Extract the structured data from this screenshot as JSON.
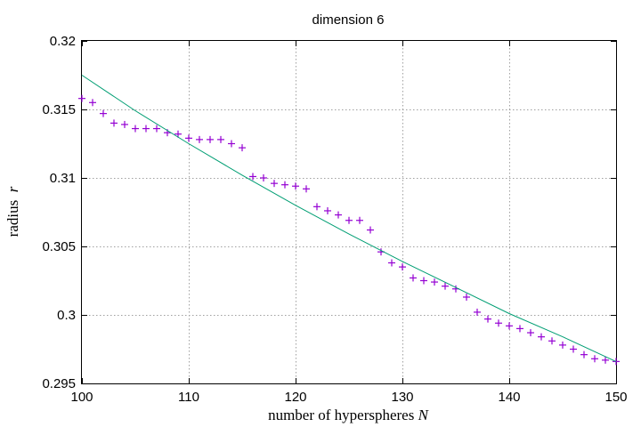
{
  "chart_data": {
    "type": "scatter",
    "title": "dimension 6",
    "xlabel": {
      "text": "number of hyperspheres ",
      "var": "N"
    },
    "ylabel": {
      "text": "radius  ",
      "var": "r"
    },
    "xlim": [
      100,
      150
    ],
    "ylim": [
      0.295,
      0.32
    ],
    "xticks": [
      100,
      110,
      120,
      130,
      140,
      150
    ],
    "xtick_labels": [
      "100",
      "110",
      "120",
      "130",
      "140",
      "150"
    ],
    "yticks": [
      0.295,
      0.3,
      0.305,
      0.31,
      0.315,
      0.32
    ],
    "ytick_labels": [
      "0.295",
      "0.3",
      "0.305",
      "0.31",
      "0.315",
      "0.32"
    ],
    "grid": true,
    "legend": "none",
    "series": [
      {
        "kind": "points",
        "marker": "plus",
        "color": "#9400d3",
        "x": [
          100,
          101,
          102,
          103,
          104,
          105,
          106,
          107,
          108,
          109,
          110,
          111,
          112,
          113,
          114,
          115,
          116,
          117,
          118,
          119,
          120,
          121,
          122,
          123,
          124,
          125,
          126,
          127,
          128,
          129,
          130,
          131,
          132,
          133,
          134,
          135,
          136,
          137,
          138,
          139,
          140,
          141,
          142,
          143,
          144,
          145,
          146,
          147,
          148,
          149,
          150
        ],
        "y": [
          0.3158,
          0.3155,
          0.3147,
          0.314,
          0.3139,
          0.3136,
          0.3136,
          0.3136,
          0.3133,
          0.3132,
          0.3129,
          0.3128,
          0.3128,
          0.3128,
          0.3125,
          0.3122,
          0.3101,
          0.31,
          0.3096,
          0.3095,
          0.3094,
          0.3092,
          0.3079,
          0.3076,
          0.3073,
          0.3069,
          0.3069,
          0.3062,
          0.3046,
          0.3038,
          0.3035,
          0.3027,
          0.3025,
          0.3024,
          0.3021,
          0.3019,
          0.3013,
          0.3002,
          0.2997,
          0.2994,
          0.2992,
          0.299,
          0.2987,
          0.2984,
          0.2981,
          0.2978,
          0.2975,
          0.2971,
          0.2968,
          0.2967,
          0.2966
        ]
      },
      {
        "kind": "line",
        "color": "#009e73",
        "x": [
          100,
          105,
          110,
          115,
          120,
          125,
          130,
          135,
          140,
          145,
          150
        ],
        "y": [
          0.3175,
          0.3149,
          0.3125,
          0.3102,
          0.308,
          0.3059,
          0.3039,
          0.302,
          0.3001,
          0.2984,
          0.2966
        ]
      }
    ]
  }
}
